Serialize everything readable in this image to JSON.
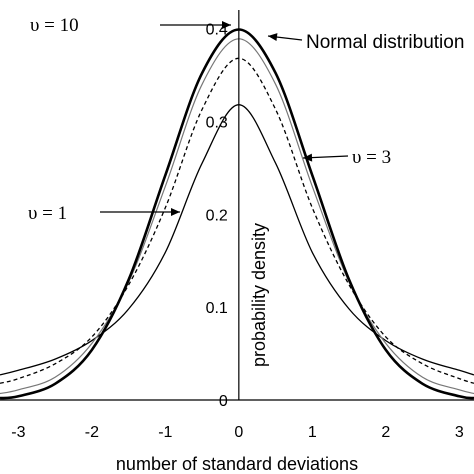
{
  "chart_data": {
    "type": "line",
    "xlabel": "number of standard deviations",
    "ylabel": "probability density",
    "xlim": [
      -3.25,
      3.2
    ],
    "ylim": [
      0,
      0.42
    ],
    "x_ticks": [
      -3,
      -2,
      -1,
      0,
      1,
      2,
      3
    ],
    "x_tick_labels": [
      "-3",
      "-2",
      "-1",
      "0",
      "1",
      "2",
      "3"
    ],
    "y_ticks": [
      0,
      0.1,
      0.2,
      0.3,
      0.4
    ],
    "y_tick_labels": [
      "0",
      "0.1",
      "0.2",
      "0.3",
      "0.4"
    ],
    "grid": false,
    "series": [
      {
        "name": "Normal distribution",
        "style": "thick-solid",
        "color": "#000000",
        "x": [
          -3.25,
          -3,
          -2.5,
          -2,
          -1.5,
          -1,
          -0.5,
          0,
          0.5,
          1,
          1.5,
          2,
          2.5,
          3,
          3.2
        ],
        "y": [
          0.002,
          0.004,
          0.0175,
          0.054,
          0.1295,
          0.242,
          0.352,
          0.399,
          0.352,
          0.242,
          0.1295,
          0.054,
          0.0175,
          0.004,
          0.002
        ]
      },
      {
        "name": "υ = 10",
        "style": "thin-gray",
        "color": "#777777",
        "x": [
          -3.25,
          -3,
          -2.5,
          -2,
          -1.5,
          -1,
          -0.5,
          0,
          0.5,
          1,
          1.5,
          2,
          2.5,
          3,
          3.2
        ],
        "y": [
          0.007,
          0.011,
          0.0245,
          0.061,
          0.127,
          0.23,
          0.34,
          0.389,
          0.34,
          0.23,
          0.127,
          0.061,
          0.0245,
          0.011,
          0.007
        ]
      },
      {
        "name": "υ = 3",
        "style": "dotted",
        "color": "#000000",
        "x": [
          -3.25,
          -3,
          -2.5,
          -2,
          -1.5,
          -1,
          -0.5,
          0,
          0.5,
          1,
          1.5,
          2,
          2.5,
          3,
          3.2
        ],
        "y": [
          0.018,
          0.023,
          0.039,
          0.068,
          0.124,
          0.207,
          0.313,
          0.368,
          0.313,
          0.207,
          0.124,
          0.068,
          0.039,
          0.023,
          0.018
        ]
      },
      {
        "name": "υ = 1",
        "style": "thin-solid",
        "color": "#000000",
        "x": [
          -3.25,
          -3,
          -2.5,
          -2,
          -1.5,
          -1,
          -0.5,
          0,
          0.5,
          1,
          1.5,
          2,
          2.5,
          3,
          3.2
        ],
        "y": [
          0.027,
          0.032,
          0.044,
          0.064,
          0.098,
          0.159,
          0.255,
          0.318,
          0.255,
          0.159,
          0.098,
          0.064,
          0.044,
          0.032,
          0.027
        ]
      }
    ],
    "annotations": [
      {
        "text": "υ = 10",
        "font": "serif",
        "points_to": "υ = 10"
      },
      {
        "text": "Normal distribution",
        "font": "sans",
        "points_to": "Normal distribution"
      },
      {
        "text": "υ = 3",
        "font": "serif",
        "points_to": "υ = 3"
      },
      {
        "text": "υ = 1",
        "font": "serif",
        "points_to": "υ = 1"
      }
    ]
  }
}
